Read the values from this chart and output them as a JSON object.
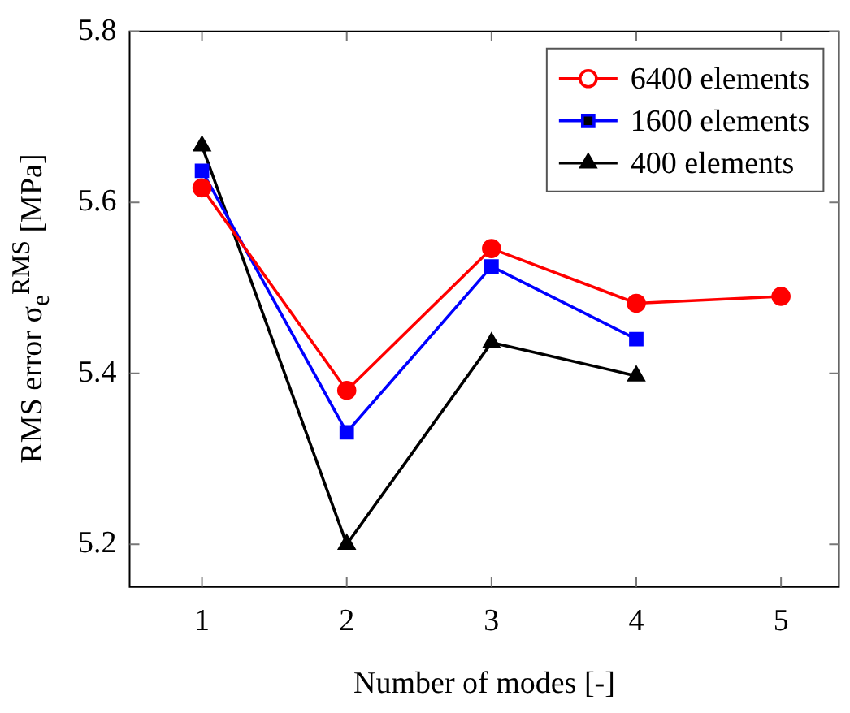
{
  "chart_data": {
    "type": "line",
    "xlabel": "Number of modes [-]",
    "ylabel": "RMS error σ$_{e}$$^{RMS}$ [MPa]",
    "xlim": [
      0.5,
      5.4
    ],
    "xticks": [
      1,
      2,
      3,
      4,
      5
    ],
    "ylim": [
      5.15,
      5.8
    ],
    "yticks": [
      5.2,
      5.4,
      5.6,
      5.8
    ],
    "grid": false,
    "legend": "top right",
    "series": [
      {
        "name": "6400 elements",
        "color": "#ff0000",
        "marker": "circle",
        "x": [
          1,
          2,
          3,
          4,
          5
        ],
        "values": [
          5.617,
          5.38,
          5.546,
          5.482,
          5.49
        ]
      },
      {
        "name": "1600 elements",
        "color": "#0000ff",
        "marker": "square",
        "x": [
          1,
          2,
          3,
          4
        ],
        "values": [
          5.637,
          5.331,
          5.525,
          5.44
        ]
      },
      {
        "name": "400 elements",
        "color": "#000000",
        "marker": "triangle",
        "x": [
          1,
          2,
          3,
          4
        ],
        "values": [
          5.666,
          5.2,
          5.436,
          5.397
        ]
      }
    ]
  }
}
